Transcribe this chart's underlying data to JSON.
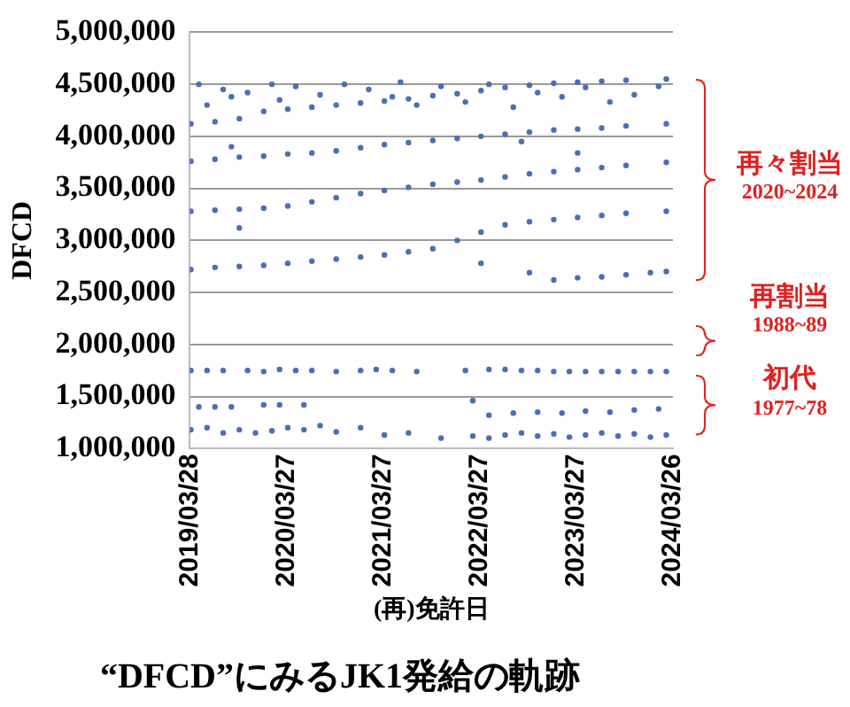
{
  "chart_data": {
    "type": "scatter",
    "title": "“DFCD”にみるJK1発給の軌跡",
    "xlabel": "(再)免許日",
    "ylabel": "DFCD",
    "xlim": [
      "2019-03-28",
      "2024-03-26"
    ],
    "xticks": [
      {
        "value": "2019-03-28",
        "label": "2019/03/28"
      },
      {
        "value": "2020-03-27",
        "label": "2020/03/27"
      },
      {
        "value": "2021-03-27",
        "label": "2021/03/27"
      },
      {
        "value": "2022-03-27",
        "label": "2022/03/27"
      },
      {
        "value": "2023-03-27",
        "label": "2023/03/27"
      },
      {
        "value": "2024-03-26",
        "label": "2024/03/26"
      }
    ],
    "ylim": [
      1000000,
      5000000
    ],
    "yticks": [
      {
        "value": 1000000,
        "label": "1,000,000"
      },
      {
        "value": 1500000,
        "label": "1,500,000"
      },
      {
        "value": 2000000,
        "label": "2,000,000"
      },
      {
        "value": 2500000,
        "label": "2,500,000"
      },
      {
        "value": 3000000,
        "label": "3,000,000"
      },
      {
        "value": 3500000,
        "label": "3,500,000"
      },
      {
        "value": 4000000,
        "label": "4,000,000"
      },
      {
        "value": 4500000,
        "label": "4,500,000"
      },
      {
        "value": 5000000,
        "label": "5,000,000"
      }
    ],
    "grid": "y",
    "marker": "circle",
    "legend": false,
    "annotations": [
      "再々割当\n2020~2024",
      "再割当\n1988~89",
      "初代\n1977~78"
    ],
    "series": [
      {
        "color": "#4a6fb5",
        "x": [
          "2019-04",
          "2019-07",
          "2019-10",
          "2020-01",
          "2020-04",
          "2020-07",
          "2020-10",
          "2021-01",
          "2021-04",
          "2021-07",
          "2021-10",
          "2022-01",
          "2022-04",
          "2022-07",
          "2022-10",
          "2023-01",
          "2023-04",
          "2023-07",
          "2023-10",
          "2024-03"
        ],
        "values": [
          4120000,
          4140000,
          4170000,
          4240000,
          4260000,
          4280000,
          4300000,
          4320000,
          4340000,
          4360000,
          4390000,
          4410000,
          4440000,
          4470000,
          4490000,
          4510000,
          4520000,
          4530000,
          4540000,
          4550000
        ]
      },
      {
        "color": "#4a6fb5",
        "x": [
          "2019-05",
          "2019-06",
          "2019-08",
          "2019-09",
          "2019-11",
          "2020-02",
          "2020-03",
          "2020-05",
          "2020-08",
          "2020-11",
          "2021-02",
          "2021-05",
          "2021-06",
          "2021-08",
          "2021-11",
          "2022-02",
          "2022-05",
          "2022-08",
          "2022-11",
          "2023-02",
          "2023-05",
          "2023-08",
          "2023-11",
          "2024-02"
        ],
        "values": [
          4500000,
          4300000,
          4450000,
          4380000,
          4420000,
          4500000,
          4350000,
          4480000,
          4400000,
          4500000,
          4450000,
          4380000,
          4520000,
          4300000,
          4480000,
          4330000,
          4500000,
          4280000,
          4420000,
          4380000,
          4470000,
          4330000,
          4400000,
          4480000
        ]
      },
      {
        "color": "#4a6fb5",
        "x": [
          "2019-04",
          "2019-07",
          "2019-10",
          "2020-01",
          "2020-04",
          "2020-07",
          "2020-10",
          "2021-01",
          "2021-04",
          "2021-07",
          "2021-10",
          "2022-01",
          "2022-04",
          "2022-07",
          "2022-10",
          "2023-01",
          "2023-04",
          "2023-07",
          "2023-10",
          "2024-03"
        ],
        "values": [
          3760000,
          3780000,
          3800000,
          3810000,
          3830000,
          3840000,
          3860000,
          3890000,
          3920000,
          3940000,
          3960000,
          3980000,
          4000000,
          4020000,
          4040000,
          4060000,
          4070000,
          4080000,
          4100000,
          4120000
        ]
      },
      {
        "color": "#4a6fb5",
        "x": [
          "2019-04",
          "2019-07",
          "2019-10",
          "2020-01",
          "2020-04",
          "2020-07",
          "2020-10",
          "2021-01",
          "2021-04",
          "2021-07",
          "2021-10",
          "2022-01",
          "2022-04",
          "2022-07",
          "2022-10",
          "2023-01",
          "2023-04",
          "2023-07",
          "2023-10",
          "2024-03"
        ],
        "values": [
          3280000,
          3290000,
          3300000,
          3310000,
          3330000,
          3370000,
          3410000,
          3450000,
          3480000,
          3510000,
          3540000,
          3560000,
          3580000,
          3610000,
          3640000,
          3660000,
          3680000,
          3700000,
          3720000,
          3750000
        ]
      },
      {
        "color": "#4a6fb5",
        "x": [
          "2019-04",
          "2019-07",
          "2019-10",
          "2020-01",
          "2020-04",
          "2020-07",
          "2020-10",
          "2021-01",
          "2021-04",
          "2021-07",
          "2021-10",
          "2022-01",
          "2022-04",
          "2022-07",
          "2022-10",
          "2023-01",
          "2023-04",
          "2023-07",
          "2023-10",
          "2024-03"
        ],
        "values": [
          2720000,
          2740000,
          2750000,
          2760000,
          2780000,
          2800000,
          2820000,
          2840000,
          2860000,
          2890000,
          2920000,
          3000000,
          3080000,
          3150000,
          3180000,
          3200000,
          3220000,
          3240000,
          3260000,
          3280000
        ]
      },
      {
        "color": "#4a6fb5",
        "x": [
          "2023-01",
          "2023-04",
          "2023-07",
          "2023-10",
          "2024-01",
          "2024-03",
          "2019-09",
          "2019-10",
          "2022-04",
          "2022-10",
          "2023-04",
          "2022-09"
        ],
        "values": [
          2620000,
          2640000,
          2650000,
          2670000,
          2690000,
          2700000,
          3900000,
          3120000,
          2780000,
          2690000,
          3840000,
          3950000
        ]
      },
      {
        "color": "#4a6fb5",
        "x": [
          "2019-04",
          "2019-06",
          "2019-08",
          "2019-11",
          "2020-01",
          "2020-03",
          "2020-05",
          "2020-07",
          "2020-10",
          "2021-01",
          "2021-03",
          "2021-05",
          "2021-08",
          "2022-02",
          "2022-05",
          "2022-07",
          "2022-09",
          "2022-11",
          "2023-01",
          "2023-03",
          "2023-05",
          "2023-07",
          "2023-09",
          "2023-11",
          "2024-01",
          "2024-03"
        ],
        "values": [
          1750000,
          1750000,
          1750000,
          1750000,
          1740000,
          1760000,
          1750000,
          1750000,
          1740000,
          1750000,
          1760000,
          1750000,
          1740000,
          1750000,
          1760000,
          1760000,
          1750000,
          1750000,
          1740000,
          1740000,
          1740000,
          1740000,
          1740000,
          1740000,
          1740000,
          1740000
        ]
      },
      {
        "color": "#4a6fb5",
        "x": [
          "2019-05",
          "2019-07",
          "2019-09",
          "2020-01",
          "2020-03",
          "2020-06",
          "2022-03",
          "2022-05",
          "2022-08",
          "2022-11",
          "2023-02",
          "2023-05",
          "2023-08",
          "2023-11",
          "2024-02"
        ],
        "values": [
          1400000,
          1400000,
          1400000,
          1420000,
          1420000,
          1420000,
          1460000,
          1320000,
          1340000,
          1350000,
          1340000,
          1360000,
          1350000,
          1370000,
          1380000
        ]
      },
      {
        "color": "#4a6fb5",
        "x": [
          "2019-04",
          "2019-06",
          "2019-08",
          "2019-10",
          "2019-12",
          "2020-02",
          "2020-04",
          "2020-06",
          "2020-08",
          "2020-10",
          "2021-01",
          "2021-04",
          "2021-07",
          "2021-11",
          "2022-03",
          "2022-05",
          "2022-07",
          "2022-09",
          "2022-11",
          "2023-01",
          "2023-03",
          "2023-05",
          "2023-07",
          "2023-09",
          "2023-11",
          "2024-01",
          "2024-03"
        ],
        "values": [
          1180000,
          1200000,
          1150000,
          1180000,
          1150000,
          1170000,
          1200000,
          1180000,
          1220000,
          1160000,
          1200000,
          1130000,
          1150000,
          1100000,
          1120000,
          1100000,
          1130000,
          1150000,
          1120000,
          1140000,
          1110000,
          1130000,
          1150000,
          1120000,
          1140000,
          1110000,
          1130000
        ]
      }
    ]
  }
}
